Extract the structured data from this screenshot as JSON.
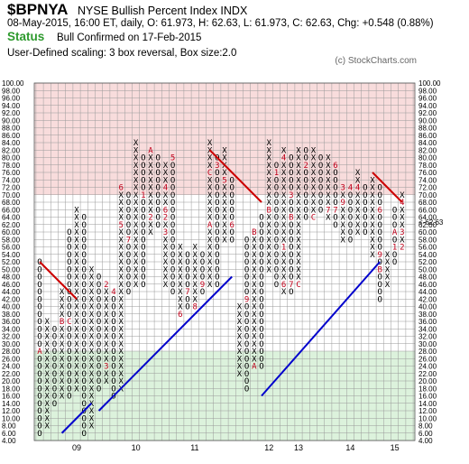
{
  "header": {
    "symbol": "$BPNYA",
    "name": "NYSE Bullish Percent Index  INDX",
    "meta": "08-May-2015, 16:00 ET, daily, O: 61.973, H: 62.63, L: 61.973, C: 62.63, Chg: +0.548 (0.88%)",
    "status_label": "Status",
    "status_text": "Bull Confirmed on 17-Feb-2015",
    "scaling": "User-Defined scaling: 3 box reversal, Box size:2.0",
    "copyright": "(c) StockCharts.com"
  },
  "colors": {
    "overbought_zone": "#f8dcdc",
    "oversold_zone": "#dcf2dc",
    "x_color": "#000000",
    "o_color": "#000000",
    "month_marker": "#c0001a",
    "resistance_line": "#cc0000",
    "support_line": "#0000cc",
    "left_price_marker": "#c0001a"
  },
  "chart_data": {
    "type": "point-and-figure",
    "box_size": 2,
    "reversal": 3,
    "ylim": [
      4,
      100
    ],
    "y_ticks": [
      "100.00",
      "98.00",
      "96.00",
      "94.00",
      "92.00",
      "90.00",
      "88.00",
      "86.00",
      "84.00",
      "82.00",
      "80.00",
      "78.00",
      "76.00",
      "74.00",
      "72.00",
      "70.00",
      "68.00",
      "66.00",
      "64.00",
      "62.00",
      "60.00",
      "58.00",
      "56.00",
      "54.00",
      "52.00",
      "50.00",
      "48.00",
      "46.00",
      "44.00",
      "42.00",
      "40.00",
      "38.00",
      "36.00",
      "34.00",
      "32.00",
      "30.00",
      "28.00",
      "26.00",
      "24.00",
      "22.00",
      "20.00",
      "18.00",
      "16.00",
      "14.00",
      "12.00",
      "10.00",
      "8.00",
      "6.00",
      "4.00"
    ],
    "x_labels": [
      {
        "label": "09",
        "col": 5
      },
      {
        "label": "10",
        "col": 13
      },
      {
        "label": "11",
        "col": 21
      },
      {
        "label": "12",
        "col": 31
      },
      {
        "label": "13",
        "col": 35
      },
      {
        "label": "14",
        "col": 42
      },
      {
        "label": "15",
        "col": 48
      }
    ],
    "overbought_above": 70,
    "oversold_below": 28,
    "last_price": "62.63",
    "last_price_marker": "62.00",
    "last_price_label": "<-62.63",
    "columns": [
      {
        "type": "O",
        "top": 52,
        "bottom": 6,
        "marks": {
          "28": "A"
        }
      },
      {
        "type": "X",
        "top": 36,
        "bottom": 8
      },
      {
        "type": "O",
        "top": 34,
        "bottom": 14
      },
      {
        "type": "X",
        "top": 44,
        "bottom": 16,
        "marks": {
          "36": "B"
        }
      },
      {
        "type": "O",
        "top": 60,
        "bottom": 16,
        "marks": {
          "36": "C"
        }
      },
      {
        "type": "X",
        "top": 66,
        "bottom": 18
      },
      {
        "type": "O",
        "top": 64,
        "bottom": 6
      },
      {
        "type": "X",
        "top": 50,
        "bottom": 8
      },
      {
        "type": "O",
        "top": 48,
        "bottom": 18
      },
      {
        "type": "X",
        "top": 46,
        "bottom": 20,
        "marks": {
          "46": "2",
          "24": "3"
        }
      },
      {
        "type": "O",
        "top": 44,
        "bottom": 16,
        "marks": {
          "44": "4"
        }
      },
      {
        "type": "X",
        "top": 72,
        "bottom": 18,
        "marks": {
          "72": "6",
          "62": "5"
        }
      },
      {
        "type": "O",
        "top": 70,
        "bottom": 44,
        "marks": {
          "58": "7"
        }
      },
      {
        "type": "X",
        "top": 84,
        "bottom": 46
      },
      {
        "type": "O",
        "top": 80,
        "bottom": 46,
        "marks": {
          "82": "9",
          "70": "1"
        }
      },
      {
        "type": "X",
        "top": 82,
        "bottom": 60,
        "marks": {
          "82": "A",
          "64": "2"
        }
      },
      {
        "type": "O",
        "top": 80,
        "bottom": 62
      },
      {
        "type": "X",
        "top": 78,
        "bottom": 46,
        "marks": {
          "72": "4",
          "66": "6",
          "64": "2",
          "60": "3"
        }
      },
      {
        "type": "O",
        "top": 80,
        "bottom": 44,
        "marks": {
          "80": "5"
        }
      },
      {
        "type": "X",
        "top": 56,
        "bottom": 38,
        "marks": {
          "38": "6"
        }
      },
      {
        "type": "O",
        "top": 54,
        "bottom": 40,
        "marks": {
          "44": "7"
        }
      },
      {
        "type": "X",
        "top": 56,
        "bottom": 40,
        "marks": {
          "40": "8"
        }
      },
      {
        "type": "O",
        "top": 54,
        "bottom": 44,
        "marks": {
          "46": "9"
        }
      },
      {
        "type": "X",
        "top": 84,
        "bottom": 46,
        "marks": {
          "76": "C",
          "62": "A"
        }
      },
      {
        "type": "O",
        "top": 80,
        "bottom": 46,
        "marks": {
          "78": "3"
        }
      },
      {
        "type": "X",
        "top": 82,
        "bottom": 58,
        "marks": {
          "74": "5"
        }
      },
      {
        "type": "O",
        "top": 74,
        "bottom": 58,
        "marks": {
          "62": "6"
        }
      },
      {
        "type": "X",
        "top": 40,
        "bottom": 22
      },
      {
        "type": "O",
        "top": 58,
        "bottom": 18,
        "marks": {
          "42": "9"
        }
      },
      {
        "type": "X",
        "top": 60,
        "bottom": 24,
        "marks": {
          "60": "B",
          "24": "A"
        }
      },
      {
        "type": "O",
        "top": 64,
        "bottom": 24
      },
      {
        "type": "X",
        "top": 84,
        "bottom": 50,
        "marks": {
          "66": "B"
        }
      },
      {
        "type": "O",
        "top": 78,
        "bottom": 46,
        "marks": {
          "76": "1"
        }
      },
      {
        "type": "X",
        "top": 82,
        "bottom": 44,
        "marks": {
          "80": "4",
          "56": "1",
          "46": "6"
        }
      },
      {
        "type": "O",
        "top": 80,
        "bottom": 44,
        "marks": {
          "70": "3",
          "64": "B",
          "46": "7"
        }
      },
      {
        "type": "X",
        "top": 82,
        "bottom": 46,
        "marks": {
          "46": "C"
        }
      },
      {
        "type": "O",
        "top": 82,
        "bottom": 64,
        "marks": {
          "78": "2"
        }
      },
      {
        "type": "X",
        "top": 82,
        "bottom": 64,
        "marks": {
          "64": "C"
        }
      },
      {
        "type": "O",
        "top": 80,
        "bottom": 66
      },
      {
        "type": "X",
        "top": 80,
        "bottom": 64,
        "marks": {
          "66": "7"
        }
      },
      {
        "type": "O",
        "top": 78,
        "bottom": 62,
        "marks": {
          "78": "6",
          "66": "7"
        }
      },
      {
        "type": "X",
        "top": 72,
        "bottom": 58,
        "marks": {
          "72": "3",
          "68": "9"
        }
      },
      {
        "type": "O",
        "top": 72,
        "bottom": 58,
        "marks": {
          "72": "4"
        }
      },
      {
        "type": "X",
        "top": 76,
        "bottom": 60,
        "marks": {
          "72": "4"
        }
      },
      {
        "type": "O",
        "top": 72,
        "bottom": 60
      },
      {
        "type": "X",
        "top": 74,
        "bottom": 54
      },
      {
        "type": "O",
        "top": 72,
        "bottom": 42,
        "marks": {
          "66": "6",
          "54": "9",
          "50": "B"
        }
      },
      {
        "type": "X",
        "top": 54,
        "bottom": 46
      },
      {
        "type": "O",
        "top": 66,
        "bottom": 52,
        "marks": {
          "60": "A",
          "56": "1"
        }
      },
      {
        "type": "X",
        "top": 70,
        "bottom": 56,
        "marks": {
          "68": "4",
          "60": "3",
          "56": "2"
        }
      }
    ]
  }
}
